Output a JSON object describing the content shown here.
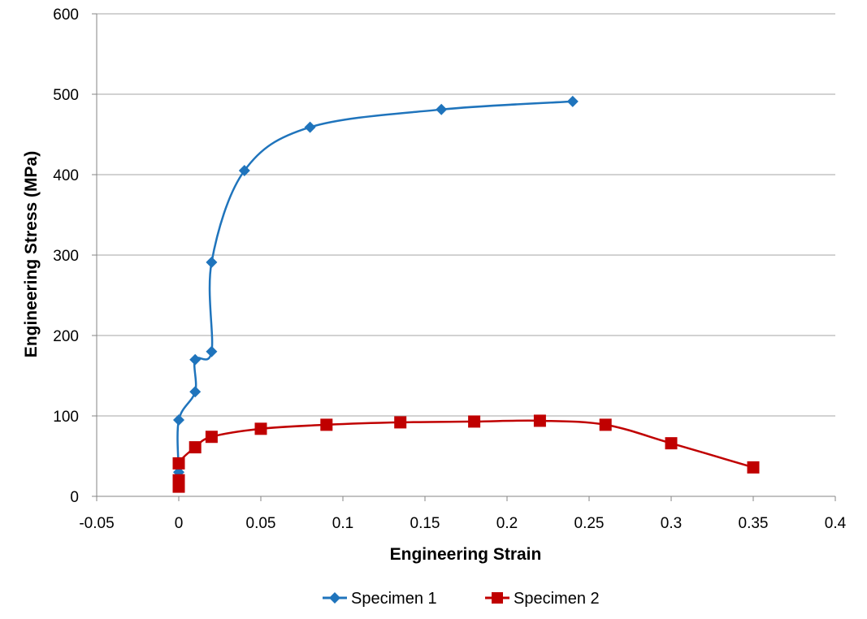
{
  "chart_data": {
    "type": "scatter",
    "title": "",
    "xlabel": "Engineering Strain",
    "ylabel": "Engineering Stress (MPa)",
    "xlim": [
      -0.05,
      0.4
    ],
    "ylim": [
      0,
      600
    ],
    "x_ticks": [
      "-0.05",
      "0",
      "0.05",
      "0.1",
      "0.15",
      "0.2",
      "0.25",
      "0.3",
      "0.35",
      "0.4"
    ],
    "y_ticks": [
      "0",
      "100",
      "200",
      "300",
      "400",
      "500",
      "600"
    ],
    "grid": "horizontal",
    "smooth_lines": true,
    "legend_position": "bottom",
    "series": [
      {
        "name": "Specimen 1",
        "color": "#1F74BC",
        "marker": "diamond",
        "points": [
          {
            "x": 0,
            "y": 30
          },
          {
            "x": 0,
            "y": 95
          },
          {
            "x": 0.01,
            "y": 130
          },
          {
            "x": 0.01,
            "y": 170
          },
          {
            "x": 0.02,
            "y": 180
          },
          {
            "x": 0.02,
            "y": 291
          },
          {
            "x": 0.04,
            "y": 405
          },
          {
            "x": 0.08,
            "y": 459
          },
          {
            "x": 0.16,
            "y": 481
          },
          {
            "x": 0.24,
            "y": 491
          }
        ]
      },
      {
        "name": "Specimen 2",
        "color": "#C00000",
        "marker": "square",
        "points": [
          {
            "x": 0,
            "y": 12
          },
          {
            "x": 0,
            "y": 20
          },
          {
            "x": 0,
            "y": 41
          },
          {
            "x": 0.01,
            "y": 61
          },
          {
            "x": 0.02,
            "y": 74
          },
          {
            "x": 0.05,
            "y": 84
          },
          {
            "x": 0.09,
            "y": 89
          },
          {
            "x": 0.135,
            "y": 92
          },
          {
            "x": 0.18,
            "y": 93
          },
          {
            "x": 0.22,
            "y": 94
          },
          {
            "x": 0.26,
            "y": 89
          },
          {
            "x": 0.3,
            "y": 66
          },
          {
            "x": 0.35,
            "y": 36
          }
        ]
      }
    ]
  }
}
